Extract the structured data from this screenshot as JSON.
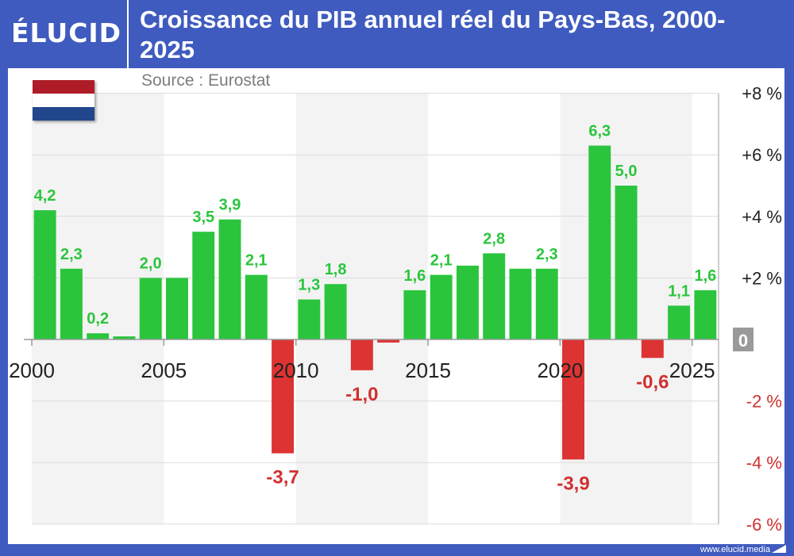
{
  "brand": {
    "logo": "ÉLUCID",
    "website": "www.elucid.media"
  },
  "title": "Croissance du PIB annuel réel du Pays-Bas, 2000-2025",
  "source": "Source : Eurostat",
  "colors": {
    "header": "#3f5bbf",
    "positive": "#2bc53d",
    "negative": "#dd3333",
    "positive_label": "#2bc53d",
    "negative_label": "#d03030",
    "shade": "#f3f3f3",
    "zero_badge": "#9a9a9a"
  },
  "flag": {
    "icon": "netherlands-flag-icon",
    "stripes": [
      "#ae1c28",
      "#ffffff",
      "#21468b"
    ]
  },
  "chart_data": {
    "type": "bar",
    "title": "Croissance du PIB annuel réel du Pays-Bas, 2000-2025",
    "xlabel": "",
    "ylabel": "",
    "categories": [
      2000,
      2001,
      2002,
      2003,
      2004,
      2005,
      2006,
      2007,
      2008,
      2009,
      2010,
      2011,
      2012,
      2013,
      2014,
      2015,
      2016,
      2017,
      2018,
      2019,
      2020,
      2021,
      2022,
      2023,
      2024,
      2025
    ],
    "values": [
      4.2,
      2.3,
      0.2,
      0.1,
      2.0,
      2.0,
      3.5,
      3.9,
      2.1,
      -3.7,
      1.3,
      1.8,
      -1.0,
      -0.1,
      1.6,
      2.1,
      2.4,
      2.8,
      2.3,
      2.3,
      -3.9,
      6.3,
      5.0,
      -0.6,
      1.1,
      1.6
    ],
    "data_labels": {
      "2000": "4,2",
      "2001": "2,3",
      "2002": "0,2",
      "2004": "2,0",
      "2006": "3,5",
      "2007": "3,9",
      "2008": "2,1",
      "2009": "-3,7",
      "2010": "1,3",
      "2011": "1,8",
      "2012": "-1,0",
      "2014": "1,6",
      "2015": "2,1",
      "2017": "2,8",
      "2019": "2,3",
      "2020": "-3,9",
      "2021": "6,3",
      "2022": "5,0",
      "2023": "-0,6",
      "2024": "1,1",
      "2025": "1,6"
    },
    "x_tick_labels": [
      {
        "year": 2000,
        "label": "2000"
      },
      {
        "year": 2005,
        "label": "2005"
      },
      {
        "year": 2010,
        "label": "2010"
      },
      {
        "year": 2015,
        "label": "2015"
      },
      {
        "year": 2020,
        "label": "2020"
      },
      {
        "year": 2025,
        "label": "2025"
      }
    ],
    "y_ticks": [
      {
        "value": 8,
        "label": "+8 %"
      },
      {
        "value": 6,
        "label": "+6 %"
      },
      {
        "value": 4,
        "label": "+4 %"
      },
      {
        "value": 2,
        "label": "+2 %"
      },
      {
        "value": 0,
        "label": "0"
      },
      {
        "value": -2,
        "label": "-2 %"
      },
      {
        "value": -4,
        "label": "-4 %"
      },
      {
        "value": -6,
        "label": "-6 %"
      }
    ],
    "ylim": [
      -6,
      8
    ],
    "shaded_year_ranges": [
      [
        2000,
        2004
      ],
      [
        2010,
        2014
      ],
      [
        2020,
        2024
      ]
    ],
    "grid": true,
    "y_axis_position": "right",
    "legend": "none"
  }
}
